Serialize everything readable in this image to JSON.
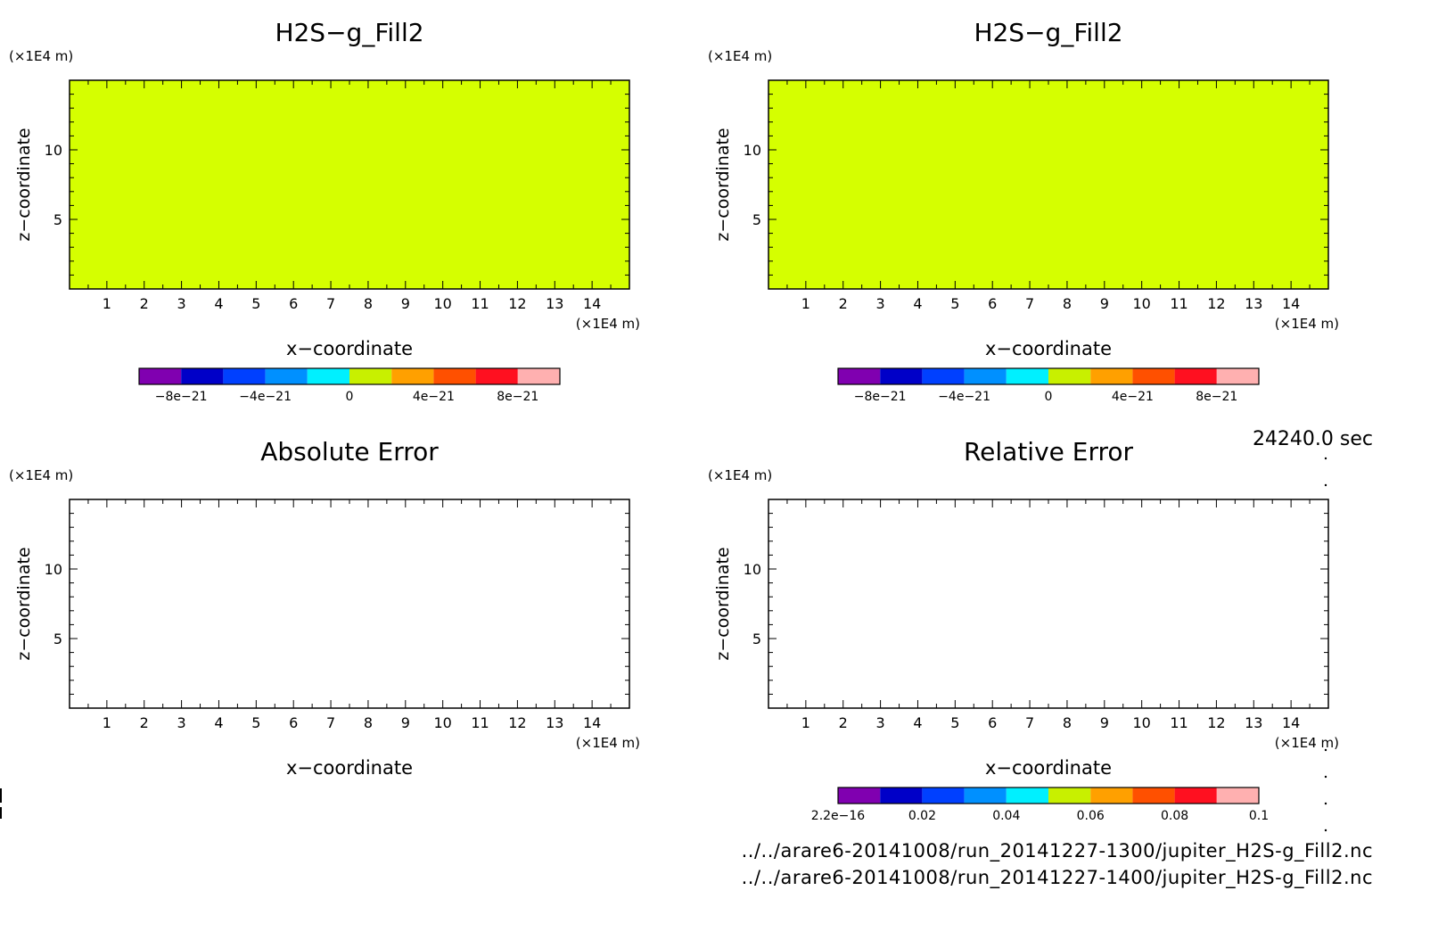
{
  "time_label": "24240.0 sec",
  "footer": {
    "file1": "../../arare6-20141008/run_20141227-1300/jupiter_H2S-g_Fill2.nc",
    "file2": "../../arare6-20141008/run_20141227-1400/jupiter_H2S-g_Fill2.nc"
  },
  "chart_data": [
    {
      "type": "heatmap",
      "title": "H2S−g_Fill2",
      "xlabel": "x−coordinate",
      "ylabel": "z−coordinate",
      "x_unit": "(×1E4 m)",
      "y_unit": "(×1E4 m)",
      "xlim": [
        0,
        15
      ],
      "ylim": [
        0,
        15
      ],
      "x_ticks": [
        1,
        2,
        3,
        4,
        5,
        6,
        7,
        8,
        9,
        10,
        11,
        12,
        13,
        14
      ],
      "y_ticks": [
        5,
        10
      ],
      "field_value": 0,
      "fill_color": "#d5ff00",
      "colorbar": {
        "levels": [
          -1e-20,
          1e-20
        ],
        "tick_values": [
          -8e-21,
          -4e-21,
          0,
          4e-21,
          8e-21
        ],
        "tick_labels": [
          "−8e−21",
          "−4e−21",
          "0",
          "4e−21",
          "8e−21"
        ],
        "colors": [
          "#8000b0",
          "#0000c8",
          "#0040ff",
          "#0090ff",
          "#00f0ff",
          "#c8f000",
          "#ffa000",
          "#ff5000",
          "#ff1020",
          "#ffb0b0"
        ]
      }
    },
    {
      "type": "heatmap",
      "title": "H2S−g_Fill2",
      "xlabel": "x−coordinate",
      "ylabel": "z−coordinate",
      "x_unit": "(×1E4 m)",
      "y_unit": "(×1E4 m)",
      "xlim": [
        0,
        15
      ],
      "ylim": [
        0,
        15
      ],
      "x_ticks": [
        1,
        2,
        3,
        4,
        5,
        6,
        7,
        8,
        9,
        10,
        11,
        12,
        13,
        14
      ],
      "y_ticks": [
        5,
        10
      ],
      "field_value": 0,
      "fill_color": "#d5ff00",
      "colorbar": {
        "levels": [
          -1e-20,
          1e-20
        ],
        "tick_values": [
          -8e-21,
          -4e-21,
          0,
          4e-21,
          8e-21
        ],
        "tick_labels": [
          "−8e−21",
          "−4e−21",
          "0",
          "4e−21",
          "8e−21"
        ],
        "colors": [
          "#8000b0",
          "#0000c8",
          "#0040ff",
          "#0090ff",
          "#00f0ff",
          "#c8f000",
          "#ffa000",
          "#ff5000",
          "#ff1020",
          "#ffb0b0"
        ]
      }
    },
    {
      "type": "heatmap",
      "title": "Absolute Error",
      "xlabel": "x−coordinate",
      "ylabel": "z−coordinate",
      "x_unit": "(×1E4 m)",
      "y_unit": "(×1E4 m)",
      "xlim": [
        0,
        15
      ],
      "ylim": [
        0,
        15
      ],
      "x_ticks": [
        1,
        2,
        3,
        4,
        5,
        6,
        7,
        8,
        9,
        10,
        11,
        12,
        13,
        14
      ],
      "y_ticks": [
        5,
        10
      ],
      "fill_color": "#ffffff"
    },
    {
      "type": "heatmap",
      "title": "Relative Error",
      "xlabel": "x−coordinate",
      "ylabel": "z−coordinate",
      "x_unit": "(×1E4 m)",
      "y_unit": "(×1E4 m)",
      "xlim": [
        0,
        15
      ],
      "ylim": [
        0,
        15
      ],
      "x_ticks": [
        1,
        2,
        3,
        4,
        5,
        6,
        7,
        8,
        9,
        10,
        11,
        12,
        13,
        14
      ],
      "y_ticks": [
        5,
        10
      ],
      "fill_color": "#ffffff",
      "colorbar": {
        "levels": [
          2.2e-16,
          0.1
        ],
        "tick_values": [
          2.2e-16,
          0.02,
          0.04,
          0.06,
          0.08,
          0.1
        ],
        "tick_labels": [
          "2.2e−16",
          "0.02",
          "0.04",
          "0.06",
          "0.08",
          "0.1"
        ],
        "colors": [
          "#8000b0",
          "#0000c8",
          "#0040ff",
          "#0090ff",
          "#00f0ff",
          "#c8f000",
          "#ffa000",
          "#ff5000",
          "#ff1020",
          "#ffb0b0"
        ]
      }
    }
  ]
}
